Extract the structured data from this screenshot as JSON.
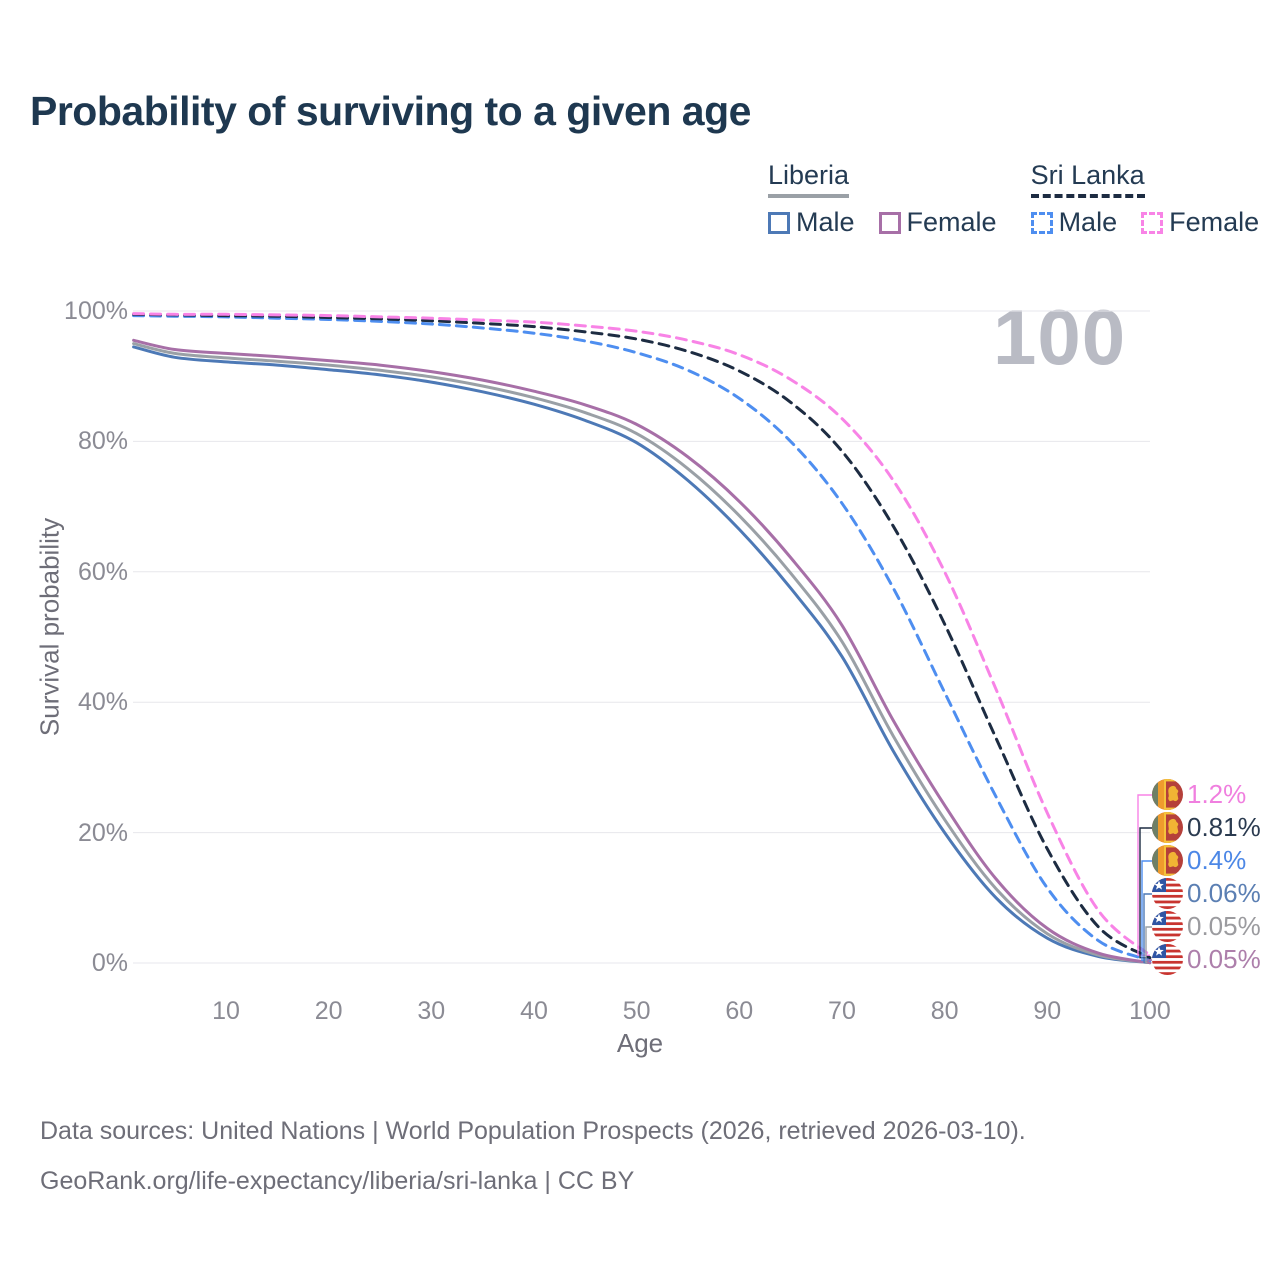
{
  "header": {
    "title": "Probability of surviving to a given age"
  },
  "legend": {
    "groups": [
      {
        "country": "Liberia",
        "line_style": "solid",
        "underline_color": "#9aa0a6",
        "items": [
          {
            "label": "Male",
            "color": "#4d79b6"
          },
          {
            "label": "Female",
            "color": "#a76fa7"
          }
        ]
      },
      {
        "country": "Sri Lanka",
        "line_style": "dashed",
        "underline_color": "#1d2c42",
        "items": [
          {
            "label": "Male",
            "color": "#4e8ef0"
          },
          {
            "label": "Female",
            "color": "#f883e6"
          }
        ]
      }
    ]
  },
  "watermark": "100",
  "axes": {
    "xlabel": "Age",
    "ylabel": "Survival probability",
    "x_ticks": [
      10,
      20,
      30,
      40,
      50,
      60,
      70,
      80,
      90,
      100
    ],
    "y_ticks": [
      "0%",
      "20%",
      "40%",
      "60%",
      "80%",
      "100%"
    ],
    "grid_color": "#e7e7ec",
    "tick_color": "#8b8b94"
  },
  "chart_data": {
    "type": "line",
    "title": "Probability of surviving to a given age",
    "xlabel": "Age",
    "ylabel": "Survival probability",
    "xlim": [
      0,
      100
    ],
    "ylim": [
      0,
      100
    ],
    "grid": "horizontal",
    "legend_position": "top-right",
    "x": [
      1,
      5,
      10,
      15,
      20,
      25,
      30,
      35,
      40,
      45,
      50,
      55,
      60,
      65,
      70,
      75,
      80,
      85,
      90,
      95,
      100
    ],
    "series": [
      {
        "name": "Liberia Male",
        "country": "Liberia",
        "sex": "Male",
        "style": "solid",
        "color": "#4d79b6",
        "end_label": "0.06%",
        "end_label_color": "#5b7fb3",
        "end_value": 0.06,
        "values": [
          94.5,
          92.9,
          92.2,
          91.7,
          91.0,
          90.2,
          89.1,
          87.6,
          85.7,
          83.2,
          79.8,
          74.0,
          66.5,
          57.5,
          47.0,
          32.5,
          20.0,
          10.0,
          3.8,
          1.0,
          0.06
        ]
      },
      {
        "name": "Liberia Both sexes",
        "country": "Liberia",
        "sex": "Both",
        "style": "solid",
        "color": "#9aa0a6",
        "end_label": "0.05%",
        "end_label_color": "#9b9b9f",
        "end_value": 0.05,
        "values": [
          95.0,
          93.5,
          92.8,
          92.3,
          91.7,
          90.9,
          89.9,
          88.5,
          86.7,
          84.4,
          81.2,
          75.8,
          68.6,
          59.8,
          49.3,
          34.8,
          22.0,
          11.4,
          4.5,
          1.2,
          0.05
        ]
      },
      {
        "name": "Liberia Female",
        "country": "Liberia",
        "sex": "Female",
        "style": "solid",
        "color": "#a76fa7",
        "end_label": "0.05%",
        "end_label_color": "#ad7fab",
        "end_value": 0.05,
        "values": [
          95.5,
          94.1,
          93.5,
          93.0,
          92.4,
          91.7,
          90.7,
          89.4,
          87.7,
          85.6,
          82.6,
          77.6,
          70.8,
          62.2,
          51.8,
          37.2,
          24.2,
          12.9,
          5.3,
          1.5,
          0.05
        ]
      },
      {
        "name": "Sri Lanka Male",
        "country": "Sri Lanka",
        "sex": "Male",
        "style": "dashed",
        "color": "#4e8ef0",
        "end_label": "0.4%",
        "end_label_color": "#4c87e6",
        "end_value": 0.4,
        "values": [
          99.3,
          99.2,
          99.1,
          98.9,
          98.7,
          98.4,
          98.0,
          97.4,
          96.6,
          95.4,
          93.6,
          90.9,
          86.6,
          80.0,
          70.5,
          57.5,
          41.5,
          25.5,
          11.5,
          3.4,
          0.4
        ]
      },
      {
        "name": "Sri Lanka Both sexes",
        "country": "Sri Lanka",
        "sex": "Both",
        "style": "dashed",
        "color": "#1d2c42",
        "end_label": "0.81%",
        "end_label_color": "#2b3b50",
        "end_value": 0.81,
        "values": [
          99.5,
          99.4,
          99.3,
          99.2,
          99.0,
          98.8,
          98.5,
          98.1,
          97.6,
          96.8,
          95.7,
          93.8,
          90.8,
          86.0,
          78.5,
          67.0,
          52.0,
          34.5,
          17.5,
          5.5,
          0.81
        ]
      },
      {
        "name": "Sri Lanka Female",
        "country": "Sri Lanka",
        "sex": "Female",
        "style": "dashed",
        "color": "#f883e6",
        "end_label": "1.2%",
        "end_label_color": "#f07fdf",
        "end_value": 1.2,
        "values": [
          99.6,
          99.5,
          99.5,
          99.4,
          99.3,
          99.1,
          98.9,
          98.6,
          98.3,
          97.7,
          96.9,
          95.5,
          93.3,
          89.5,
          83.5,
          74.0,
          60.0,
          42.0,
          23.0,
          8.0,
          1.2
        ]
      }
    ]
  },
  "end_labels": [
    {
      "value": "1.2%",
      "color": "#f07fdf",
      "flag": "sri-lanka",
      "series": "Sri Lanka Female"
    },
    {
      "value": "0.81%",
      "color": "#2b3b50",
      "flag": "sri-lanka",
      "series": "Sri Lanka Both sexes"
    },
    {
      "value": "0.4%",
      "color": "#4c87e6",
      "flag": "sri-lanka",
      "series": "Sri Lanka Male"
    },
    {
      "value": "0.06%",
      "color": "#5b7fb3",
      "flag": "liberia",
      "series": "Liberia Male"
    },
    {
      "value": "0.05%",
      "color": "#9b9b9f",
      "flag": "liberia",
      "series": "Liberia Both sexes"
    },
    {
      "value": "0.05%",
      "color": "#ad7fab",
      "flag": "liberia",
      "series": "Liberia Female"
    }
  ],
  "footer": {
    "line1": "Data sources: United Nations | World Population Prospects (2026, retrieved 2026-03-10).",
    "line2": "GeoRank.org/life-expectancy/liberia/sri-lanka | CC BY"
  }
}
